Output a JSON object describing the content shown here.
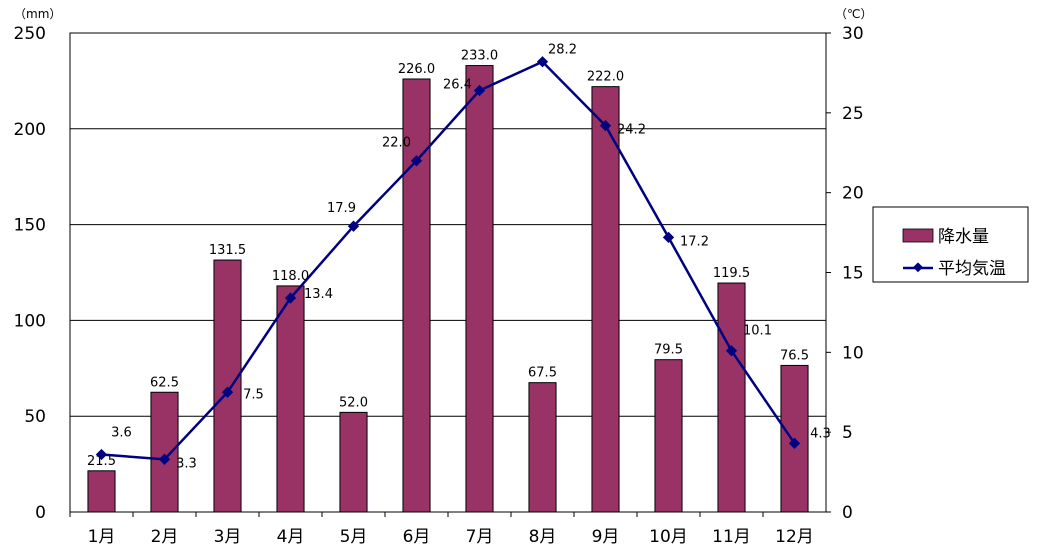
{
  "chart_data": {
    "type": "bar+line",
    "categories": [
      "1月",
      "2月",
      "3月",
      "4月",
      "5月",
      "6月",
      "7月",
      "8月",
      "9月",
      "10月",
      "11月",
      "12月"
    ],
    "series": [
      {
        "name": "降水量",
        "type": "bar",
        "axis": "left",
        "values": [
          21.5,
          62.5,
          131.5,
          118.0,
          52.0,
          226.0,
          233.0,
          67.5,
          222.0,
          79.5,
          119.5,
          76.5
        ],
        "labels": [
          "21.5",
          "62.5",
          "131.5",
          "118.0",
          "52.0",
          "226.0",
          "233.0",
          "67.5",
          "222.0",
          "79.5",
          "119.5",
          "76.5"
        ],
        "color": "#993366"
      },
      {
        "name": "平均気温",
        "type": "line",
        "axis": "right",
        "values": [
          3.6,
          3.3,
          7.5,
          13.4,
          17.9,
          22.0,
          26.4,
          28.2,
          24.2,
          17.2,
          10.1,
          4.3
        ],
        "labels": [
          "3.6",
          "3.3",
          "7.5",
          "13.4",
          "17.9",
          "22.0",
          "26.4",
          "28.2",
          "24.2",
          "17.2",
          "10.1",
          "4.3"
        ],
        "color": "#000080"
      }
    ],
    "y_left": {
      "unit": "（mm）",
      "min": 0,
      "max": 250,
      "ticks": [
        "0",
        "50",
        "100",
        "150",
        "200",
        "250"
      ]
    },
    "y_right": {
      "unit": "（℃）",
      "min": 0,
      "max": 30,
      "ticks": [
        "0",
        "5",
        "10",
        "15",
        "20",
        "25",
        "30"
      ]
    },
    "grid": true,
    "legend_position": "right"
  }
}
